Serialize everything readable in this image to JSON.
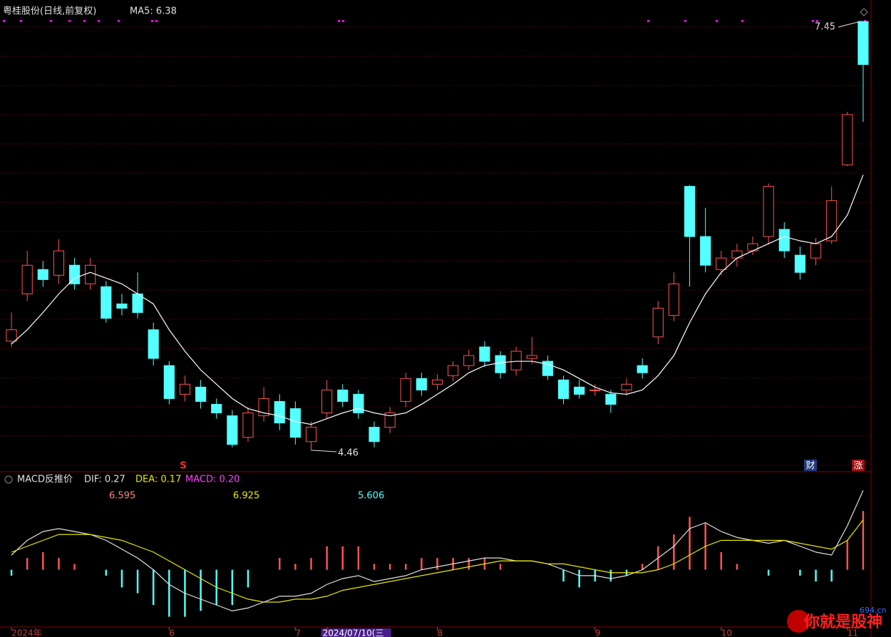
{
  "chart_data": [
    {
      "type": "candlestick",
      "title": "粤桂股份(日线,前复权)",
      "legend": [
        "MA5: 6.38"
      ],
      "annotations": [
        "7.45",
        "4.46"
      ],
      "markers": [
        "S",
        "财",
        "涨"
      ],
      "ylim": [
        4.32,
        7.55
      ],
      "up_color": "#ff5353",
      "down_color": "#54ffff",
      "open": [
        5.22,
        5.55,
        5.72,
        5.68,
        5.75,
        5.62,
        5.6,
        5.48,
        5.55,
        5.3,
        5.05,
        4.85,
        4.9,
        4.78,
        4.7,
        4.55,
        4.7,
        4.8,
        4.75,
        4.52,
        4.72,
        4.88,
        4.85,
        4.62,
        4.62,
        4.8,
        4.96,
        4.92,
        4.98,
        5.05,
        5.18,
        5.12,
        5.02,
        5.1,
        5.08,
        4.95,
        4.9,
        4.88,
        4.85,
        4.88,
        5.05,
        5.25,
        5.4,
        6.3,
        5.95,
        5.72,
        5.8,
        5.85,
        5.95,
        6.0,
        5.82,
        5.8,
        5.92,
        6.45,
        7.45
      ],
      "close": [
        5.3,
        5.75,
        5.65,
        5.85,
        5.62,
        5.75,
        5.38,
        5.45,
        5.42,
        5.1,
        4.82,
        4.92,
        4.8,
        4.72,
        4.5,
        4.72,
        4.82,
        4.65,
        4.55,
        4.62,
        4.88,
        4.8,
        4.72,
        4.52,
        4.72,
        4.96,
        4.88,
        4.95,
        5.05,
        5.12,
        5.08,
        5.0,
        5.15,
        5.12,
        4.98,
        4.82,
        4.85,
        4.88,
        4.78,
        4.92,
        5.0,
        5.45,
        5.62,
        5.95,
        5.75,
        5.8,
        5.85,
        5.9,
        6.3,
        5.85,
        5.7,
        5.9,
        6.2,
        6.8,
        7.15
      ],
      "high": [
        5.42,
        5.85,
        5.78,
        5.93,
        5.8,
        5.8,
        5.64,
        5.55,
        5.7,
        5.35,
        5.08,
        4.98,
        4.95,
        4.82,
        4.74,
        4.76,
        4.9,
        4.85,
        4.8,
        4.66,
        4.95,
        4.92,
        4.88,
        4.66,
        4.76,
        5.0,
        5.0,
        4.99,
        5.08,
        5.16,
        5.22,
        5.15,
        5.18,
        5.25,
        5.12,
        4.98,
        4.95,
        4.92,
        4.88,
        4.96,
        5.1,
        5.5,
        5.7,
        6.31,
        6.15,
        5.85,
        5.9,
        5.95,
        6.32,
        6.05,
        5.88,
        5.94,
        6.3,
        6.82,
        7.45
      ],
      "low": [
        5.18,
        5.5,
        5.6,
        5.62,
        5.58,
        5.58,
        5.35,
        5.4,
        5.38,
        5.05,
        4.78,
        4.8,
        4.75,
        4.68,
        4.48,
        4.52,
        4.66,
        4.6,
        4.5,
        4.46,
        4.68,
        4.76,
        4.68,
        4.48,
        4.58,
        4.76,
        4.84,
        4.88,
        4.94,
        5.02,
        5.04,
        4.96,
        4.98,
        5.06,
        4.95,
        4.78,
        4.82,
        4.84,
        4.72,
        4.84,
        4.96,
        5.2,
        5.36,
        5.6,
        5.7,
        5.68,
        5.74,
        5.82,
        5.9,
        5.8,
        5.65,
        5.75,
        5.9,
        6.44,
        6.75
      ],
      "series": [
        {
          "name": "MA5",
          "color": "#ffffff",
          "values": [
            5.2,
            5.3,
            5.42,
            5.55,
            5.66,
            5.7,
            5.66,
            5.62,
            5.55,
            5.48,
            5.3,
            5.15,
            5.02,
            4.92,
            4.82,
            4.75,
            4.72,
            4.7,
            4.66,
            4.64,
            4.68,
            4.72,
            4.75,
            4.72,
            4.7,
            4.72,
            4.78,
            4.85,
            4.92,
            5.0,
            5.05,
            5.07,
            5.08,
            5.08,
            5.06,
            5.02,
            4.96,
            4.9,
            4.86,
            4.85,
            4.88,
            4.98,
            5.12,
            5.35,
            5.55,
            5.7,
            5.8,
            5.85,
            5.9,
            5.95,
            5.92,
            5.9,
            5.95,
            6.1,
            6.38
          ]
        }
      ],
      "categories": [
        "2024年",
        null,
        null,
        null,
        null,
        null,
        null,
        null,
        null,
        null,
        "6",
        null,
        null,
        null,
        null,
        null,
        null,
        null,
        "7",
        null,
        "2024/07/10(三",
        null,
        null,
        null,
        null,
        null,
        null,
        "8",
        null,
        null,
        null,
        null,
        null,
        null,
        null,
        null,
        null,
        "9",
        null,
        null,
        null,
        null,
        null,
        null,
        null,
        "10",
        null,
        null,
        null,
        null,
        null,
        null,
        null,
        "11",
        null
      ]
    },
    {
      "type": "macd",
      "title": "MACD反推价",
      "legend": [
        "DIF: 0.27",
        "DEA: 0.17",
        "MACD: 0.20"
      ],
      "reverse_prices": [
        "6.595",
        "6.925",
        "5.606"
      ],
      "ylim": [
        -0.19,
        0.29
      ],
      "up_color": "#ff5353",
      "down_color": "#54ffff",
      "histogram": [
        -0.02,
        0.04,
        0.06,
        0.04,
        0.02,
        0,
        -0.02,
        -0.06,
        -0.08,
        -0.12,
        -0.16,
        -0.16,
        -0.14,
        -0.12,
        -0.12,
        -0.06,
        0,
        0.04,
        0.02,
        0.04,
        0.08,
        0.08,
        0.08,
        0.02,
        0.02,
        0.02,
        0.04,
        0.04,
        0.04,
        0.04,
        0.04,
        0.02,
        0,
        0,
        0,
        -0.04,
        -0.06,
        -0.04,
        -0.04,
        -0.02,
        0.02,
        0.08,
        0.12,
        0.18,
        0.16,
        0.06,
        0.02,
        0,
        -0.02,
        0,
        -0.02,
        -0.04,
        -0.04,
        0.1,
        0.2
      ],
      "series": [
        {
          "name": "DIF",
          "color": "#e0e0e0",
          "values": [
            0.05,
            0.1,
            0.13,
            0.14,
            0.13,
            0.12,
            0.1,
            0.07,
            0.04,
            0.0,
            -0.05,
            -0.08,
            -0.1,
            -0.12,
            -0.14,
            -0.13,
            -0.11,
            -0.09,
            -0.09,
            -0.08,
            -0.05,
            -0.03,
            -0.02,
            -0.04,
            -0.03,
            -0.02,
            0.0,
            0.01,
            0.02,
            0.03,
            0.04,
            0.04,
            0.03,
            0.03,
            0.02,
            0.0,
            -0.02,
            -0.02,
            -0.03,
            -0.02,
            0.0,
            0.04,
            0.08,
            0.14,
            0.16,
            0.13,
            0.11,
            0.1,
            0.09,
            0.1,
            0.08,
            0.06,
            0.05,
            0.15,
            0.27
          ]
        },
        {
          "name": "DEA",
          "color": "#e8e800",
          "values": [
            0.06,
            0.08,
            0.1,
            0.12,
            0.12,
            0.12,
            0.11,
            0.1,
            0.08,
            0.06,
            0.03,
            0.0,
            -0.03,
            -0.06,
            -0.08,
            -0.1,
            -0.11,
            -0.11,
            -0.1,
            -0.1,
            -0.09,
            -0.07,
            -0.06,
            -0.05,
            -0.04,
            -0.03,
            -0.02,
            -0.01,
            0.0,
            0.01,
            0.02,
            0.03,
            0.03,
            0.03,
            0.02,
            0.02,
            0.01,
            0.0,
            -0.01,
            -0.01,
            -0.01,
            0.0,
            0.02,
            0.05,
            0.08,
            0.1,
            0.1,
            0.1,
            0.1,
            0.1,
            0.09,
            0.08,
            0.07,
            0.1,
            0.17
          ]
        }
      ]
    }
  ],
  "watermark": {
    "text": "你就是股神",
    "site": "694.cn"
  }
}
